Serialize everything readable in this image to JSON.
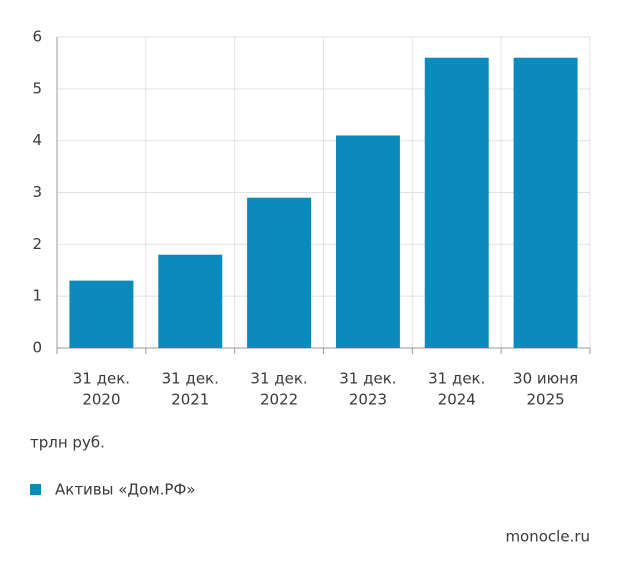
{
  "chart_data": {
    "type": "bar",
    "categories": [
      [
        "31 дек.",
        "2020"
      ],
      [
        "31 дек.",
        "2021"
      ],
      [
        "31 дек.",
        "2022"
      ],
      [
        "31 дек.",
        "2023"
      ],
      [
        "31 дек.",
        "2024"
      ],
      [
        "30 июня",
        "2025"
      ]
    ],
    "series": [
      {
        "name": "Активы «Дом.РФ»",
        "color": "#0a8bbb",
        "values": [
          1.3,
          1.8,
          2.9,
          4.1,
          5.6,
          5.6
        ]
      }
    ],
    "ylim": [
      0,
      6
    ],
    "yticks": [
      0,
      1,
      2,
      3,
      4,
      5,
      6
    ],
    "grid": true,
    "unit_label": "трлн руб.",
    "source": "monocle.ru"
  }
}
